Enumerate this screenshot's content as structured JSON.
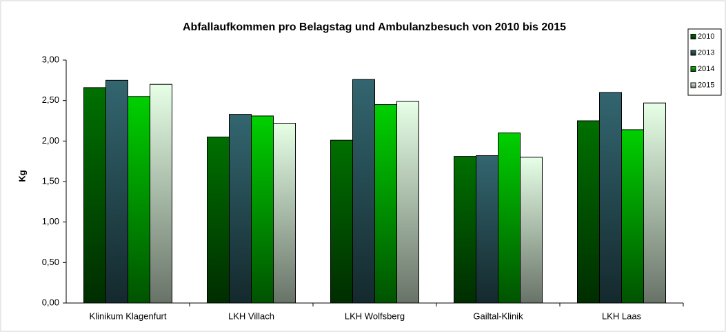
{
  "chart_data": {
    "type": "bar",
    "title": "Abfallaufkommen  pro Belagstag und Ambulanzbesuch  von 2010 bis 2015",
    "y_label": "Kg",
    "categories": [
      "Klinikum Klagenfurt",
      "LKH Villach",
      "LKH Wolfsberg",
      "Gailtal-Klinik",
      "LKH Laas"
    ],
    "series": [
      {
        "name": "2010",
        "color": "#007000",
        "values": [
          2.66,
          2.05,
          2.01,
          1.81,
          2.25
        ]
      },
      {
        "name": "2013",
        "color": "#336670",
        "values": [
          2.75,
          2.33,
          2.76,
          1.82,
          2.6
        ]
      },
      {
        "name": "2014",
        "color": "#00d000",
        "values": [
          2.55,
          2.31,
          2.45,
          2.1,
          2.14
        ]
      },
      {
        "name": "2015",
        "color": "#e6ffe6",
        "values": [
          2.7,
          2.22,
          2.49,
          1.8,
          2.47
        ]
      }
    ],
    "ylim": [
      0,
      3
    ],
    "yticks": [
      {
        "value": 0,
        "label": "0,00"
      },
      {
        "value": 0.5,
        "label": "0,50"
      },
      {
        "value": 1,
        "label": "1,00"
      },
      {
        "value": 1.5,
        "label": "1,50"
      },
      {
        "value": 2,
        "label": "2,00"
      },
      {
        "value": 2.5,
        "label": "2,50"
      },
      {
        "value": 3,
        "label": "3,00"
      }
    ],
    "legend": "top-right"
  }
}
